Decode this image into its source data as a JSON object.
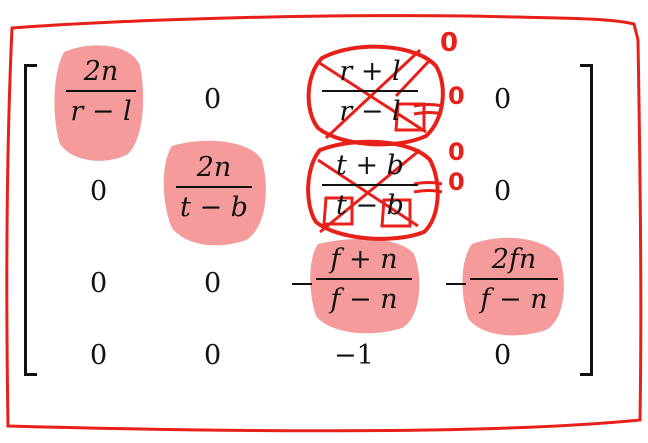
{
  "matrix": {
    "r0": {
      "c0": {
        "num": "2n",
        "den": "r − l"
      },
      "c1": "0",
      "c2": {
        "num": "r + l",
        "den": "r − l"
      },
      "c3": "0"
    },
    "r1": {
      "c0": "0",
      "c1": {
        "num": "2n",
        "den": "t − b"
      },
      "c2": {
        "num": "t + b",
        "den": "t − b"
      },
      "c3": "0"
    },
    "r2": {
      "c0": "0",
      "c1": "0",
      "c2": {
        "num": "f + n",
        "den": "f − n"
      },
      "c3": {
        "num": "2fn",
        "den": "f − n"
      }
    },
    "r3": {
      "c0": "0",
      "c1": "0",
      "c2": "−1",
      "c3": "0"
    }
  },
  "annotations": {
    "ink_color": "#e8201a",
    "highlight_color": "#f26b6b",
    "margin_notes": [
      "0",
      "0",
      "0",
      "0"
    ]
  }
}
